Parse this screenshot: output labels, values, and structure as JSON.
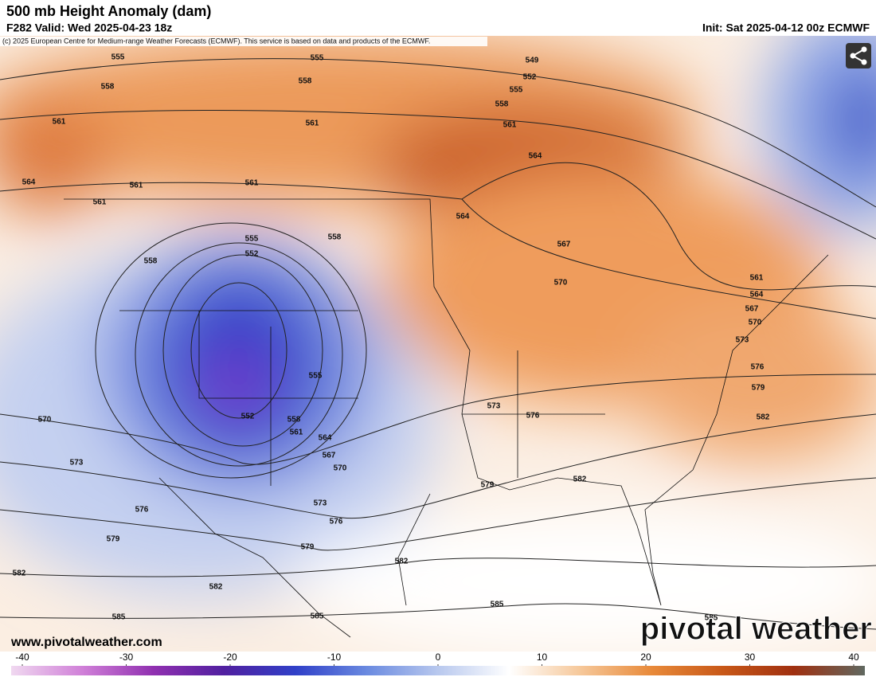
{
  "header": {
    "title": "500 mb Height Anomaly (dam)",
    "valid": "F282 Valid: Wed 2025-04-23 18z",
    "init": "Init: Sat 2025-04-12 00z ECMWF",
    "copyright": "(c) 2025 European Centre for Medium-range Weather Forecasts (ECMWF). This service is based on data and products of the ECMWF."
  },
  "contour_labels": [
    555,
    555,
    549,
    552,
    555,
    558,
    558,
    558,
    561,
    561,
    561,
    564,
    564,
    561,
    561,
    561,
    564,
    558,
    555,
    552,
    558,
    567,
    570,
    561,
    564,
    567,
    570,
    573,
    576,
    579,
    582,
    573,
    576,
    555,
    552,
    558,
    561,
    564,
    567,
    570,
    570,
    573,
    576,
    579,
    579,
    576,
    573,
    579,
    582,
    582,
    582,
    582,
    585,
    585,
    585,
    585
  ],
  "colorbar": {
    "lim": [
      -40,
      40
    ],
    "ticks": [
      -40,
      -30,
      -20,
      -10,
      0,
      10,
      20,
      30,
      40
    ],
    "colors": [
      "#f0d8f0",
      "#d080d8",
      "#9030b0",
      "#5020a0",
      "#3040c8",
      "#6a8ae0",
      "#b8c8ee",
      "#ffffff",
      "#f6c89a",
      "#e88a3a",
      "#c85818",
      "#a03010",
      "#606860"
    ]
  },
  "branding": {
    "url": "www.pivotalweather.com",
    "logo": "pivotal weather"
  }
}
